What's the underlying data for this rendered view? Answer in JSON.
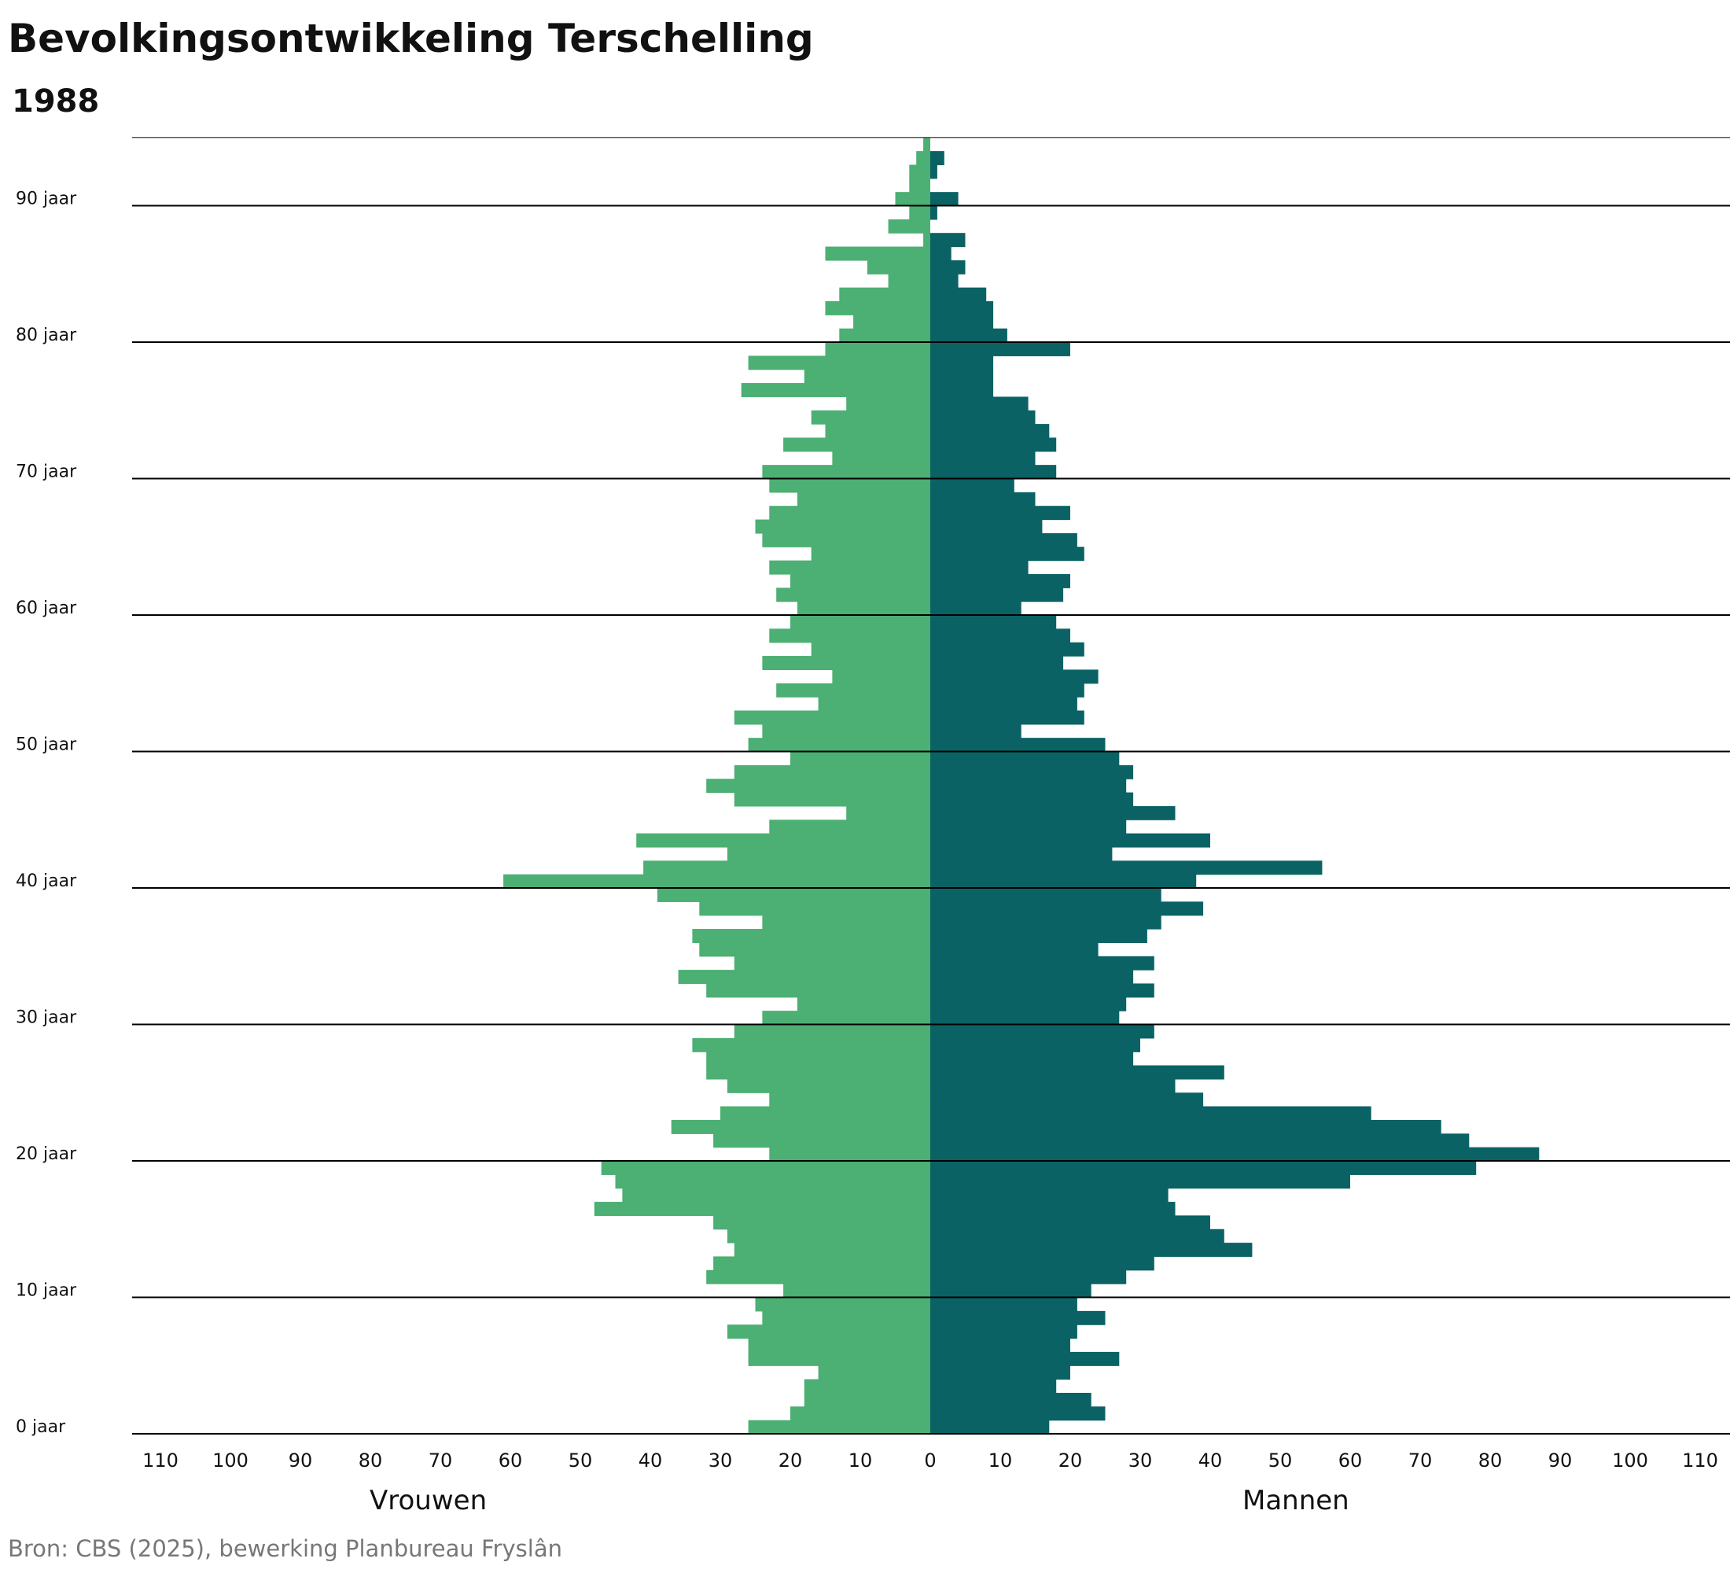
{
  "title": "Bevolkingsontwikkeling Terschelling",
  "subtitle": "1988",
  "source": "Bron: CBS (2025), bewerking Planbureau Fryslân",
  "colors": {
    "vrouwen": "#4caf73",
    "mannen": "#0a6264",
    "grid": "#000000",
    "text": "#111111",
    "source": "#777777"
  },
  "chart_data": {
    "type": "bar",
    "orientation": "horizontal",
    "subtype": "population-pyramid",
    "x_ticks": [
      110,
      100,
      90,
      80,
      70,
      60,
      50,
      40,
      30,
      20,
      10,
      0,
      10,
      20,
      30,
      40,
      50,
      60,
      70,
      80,
      90,
      100,
      110
    ],
    "xlim": [
      -115,
      115
    ],
    "ylim": [
      0,
      95
    ],
    "y_ticks": [
      {
        "age": 0,
        "label": "0 jaar"
      },
      {
        "age": 10,
        "label": "10 jaar"
      },
      {
        "age": 20,
        "label": "20 jaar"
      },
      {
        "age": 30,
        "label": "30 jaar"
      },
      {
        "age": 40,
        "label": "40 jaar"
      },
      {
        "age": 50,
        "label": "50 jaar"
      },
      {
        "age": 60,
        "label": "60 jaar"
      },
      {
        "age": 70,
        "label": "70 jaar"
      },
      {
        "age": 80,
        "label": "80 jaar"
      },
      {
        "age": 90,
        "label": "90 jaar"
      }
    ],
    "ages": [
      0,
      1,
      2,
      3,
      4,
      5,
      6,
      7,
      8,
      9,
      10,
      11,
      12,
      13,
      14,
      15,
      16,
      17,
      18,
      19,
      20,
      21,
      22,
      23,
      24,
      25,
      26,
      27,
      28,
      29,
      30,
      31,
      32,
      33,
      34,
      35,
      36,
      37,
      38,
      39,
      40,
      41,
      42,
      43,
      44,
      45,
      46,
      47,
      48,
      49,
      50,
      51,
      52,
      53,
      54,
      55,
      56,
      57,
      58,
      59,
      60,
      61,
      62,
      63,
      64,
      65,
      66,
      67,
      68,
      69,
      70,
      71,
      72,
      73,
      74,
      75,
      76,
      77,
      78,
      79,
      80,
      81,
      82,
      83,
      84,
      85,
      86,
      87,
      88,
      89,
      90,
      91,
      92,
      93,
      94
    ],
    "series": [
      {
        "name": "Vrouwen",
        "side": "left",
        "values": [
          26,
          20,
          18,
          18,
          16,
          26,
          26,
          29,
          24,
          25,
          21,
          32,
          31,
          28,
          29,
          31,
          48,
          44,
          45,
          47,
          23,
          31,
          37,
          30,
          23,
          29,
          32,
          32,
          34,
          28,
          24,
          19,
          32,
          36,
          28,
          33,
          34,
          24,
          33,
          39,
          61,
          41,
          29,
          42,
          23,
          12,
          28,
          32,
          28,
          20,
          26,
          24,
          28,
          16,
          22,
          14,
          24,
          17,
          23,
          20,
          19,
          22,
          20,
          23,
          17,
          24,
          25,
          23,
          19,
          23,
          24,
          14,
          21,
          15,
          17,
          12,
          27,
          18,
          26,
          15,
          13,
          11,
          15,
          13,
          6,
          9,
          15,
          1,
          6,
          3,
          5,
          3,
          3,
          2,
          1
        ]
      },
      {
        "name": "Mannen",
        "side": "right",
        "values": [
          17,
          25,
          23,
          18,
          20,
          27,
          20,
          21,
          25,
          21,
          23,
          28,
          32,
          46,
          42,
          40,
          35,
          34,
          60,
          78,
          87,
          77,
          73,
          63,
          39,
          35,
          42,
          29,
          30,
          32,
          27,
          28,
          32,
          29,
          32,
          24,
          31,
          33,
          39,
          33,
          38,
          56,
          26,
          40,
          28,
          35,
          29,
          28,
          29,
          27,
          25,
          13,
          22,
          21,
          22,
          24,
          19,
          22,
          20,
          18,
          13,
          19,
          20,
          14,
          22,
          21,
          16,
          20,
          15,
          12,
          18,
          15,
          18,
          17,
          15,
          14,
          9,
          9,
          9,
          20,
          11,
          9,
          9,
          8,
          4,
          5,
          3,
          5,
          0,
          1,
          4,
          0,
          1,
          2,
          0
        ]
      }
    ],
    "axis_titles": {
      "left": "Vrouwen",
      "right": "Mannen"
    },
    "grid": "horizontal-every-10-years"
  }
}
